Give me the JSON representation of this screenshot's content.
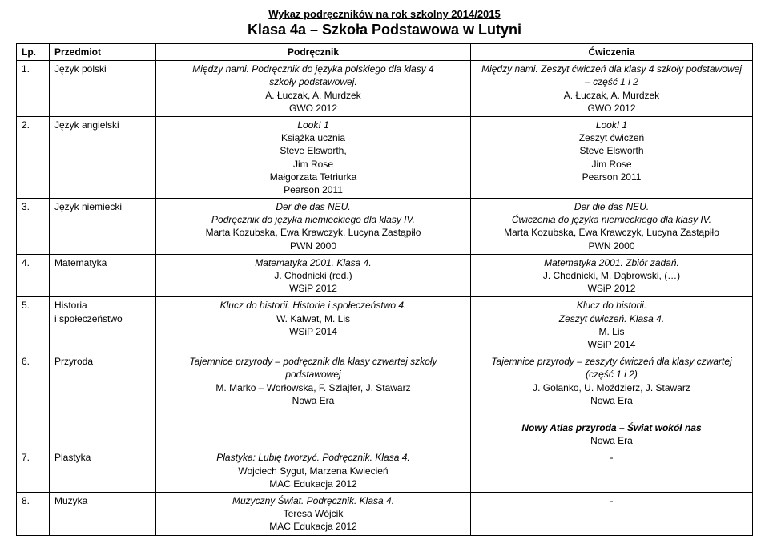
{
  "header": {
    "small": "Wykaz podręczników na rok szkolny 2014/2015",
    "big": "Klasa 4a – Szkoła Podstawowa w Lutyni"
  },
  "columns": {
    "lp": "Lp.",
    "subject": "Przedmiot",
    "textbook": "Podręcznik",
    "exercises": "Ćwiczenia"
  },
  "rows": [
    {
      "lp": "1.",
      "subject": "Język polski",
      "textbook": {
        "l1": "Między nami. Podręcznik do języka polskiego dla klasy 4",
        "l2": "szkoły podstawowej.",
        "l3": "A. Łuczak, A. Murdzek",
        "l4": "GWO 2012"
      },
      "exercises": {
        "l1": "Między nami. Zeszyt ćwiczeń dla klasy 4 szkoły podstawowej",
        "l2": "– część 1 i 2",
        "l3": "A. Łuczak, A. Murdzek",
        "l4": "GWO 2012"
      }
    },
    {
      "lp": "2.",
      "subject": "Język angielski",
      "textbook": {
        "l1": "Look! 1",
        "l2": "Książka  ucznia",
        "l3": "Steve Elsworth,",
        "l4": "Jim Rose",
        "l5": "Małgorzata Tetriurka",
        "l6": "Pearson 2011"
      },
      "exercises": {
        "l1": "Look! 1",
        "l2": "Zeszyt ćwiczeń",
        "l3": "Steve Elsworth",
        "l4": "Jim Rose",
        "l5": "Pearson 2011"
      }
    },
    {
      "lp": "3.",
      "subject": "Język niemiecki",
      "textbook": {
        "l1": "Der die das NEU.",
        "l2": "Podręcznik do języka niemieckiego dla klasy IV.",
        "l3": "Marta Kozubska, Ewa Krawczyk, Lucyna Zastąpiło",
        "l4": "PWN 2000"
      },
      "exercises": {
        "l1": "Der die das NEU.",
        "l2": "Ćwiczenia do języka niemieckiego dla klasy IV.",
        "l3": "Marta Kozubska, Ewa Krawczyk, Lucyna Zastąpiło",
        "l4": "PWN 2000"
      }
    },
    {
      "lp": "4.",
      "subject": "Matematyka",
      "textbook": {
        "l1": "Matematyka 2001. Klasa 4.",
        "l2": "J. Chodnicki (red.)",
        "l3": "WSiP 2012"
      },
      "exercises": {
        "l1": "Matematyka 2001. Zbiór zadań.",
        "l2": "J. Chodnicki, M. Dąbrowski, (…)",
        "l3": "WSiP 2012"
      }
    },
    {
      "lp": "5.",
      "subject1": "Historia",
      "subject2": "i społeczeństwo",
      "textbook": {
        "l1": "Klucz do historii. Historia i społeczeństwo 4.",
        "l2": "W. Kalwat, M. Lis",
        "l3": "WSiP 2014"
      },
      "exercises": {
        "l1": "Klucz do historii.",
        "l2": "Zeszyt ćwiczeń. Klasa 4.",
        "l3": "M. Lis",
        "l4": "WSiP 2014"
      }
    },
    {
      "lp": "6.",
      "subject": "Przyroda",
      "textbook": {
        "l1": "Tajemnice przyrody – podręcznik dla klasy czwartej szkoły",
        "l2": "podstawowej",
        "l3": "M. Marko – Worłowska, F. Szlajfer, J. Stawarz",
        "l4": "Nowa Era"
      },
      "exercises": {
        "l1": "Tajemnice przyrody – zeszyty ćwiczeń dla klasy czwartej",
        "l2": "(część 1 i 2)",
        "l3": "J. Golanko, U. Moździerz, J. Stawarz",
        "l4": "Nowa Era",
        "extra1": "Nowy Atlas przyroda – Świat wokół nas",
        "extra2": "Nowa Era"
      }
    },
    {
      "lp": "7.",
      "subject": "Plastyka",
      "textbook": {
        "l1": "Plastyka: Lubię tworzyć. Podręcznik. Klasa 4.",
        "l2": "Wojciech Sygut, Marzena Kwiecień",
        "l3": "MAC Edukacja 2012"
      },
      "exercises": {
        "l1": "-"
      }
    },
    {
      "lp": "8.",
      "subject": "Muzyka",
      "textbook": {
        "l1": "Muzyczny Świat. Podręcznik. Klasa 4.",
        "l2": "Teresa Wójcik",
        "l3": "MAC Edukacja 2012"
      },
      "exercises": {
        "l1": "-"
      }
    }
  ]
}
